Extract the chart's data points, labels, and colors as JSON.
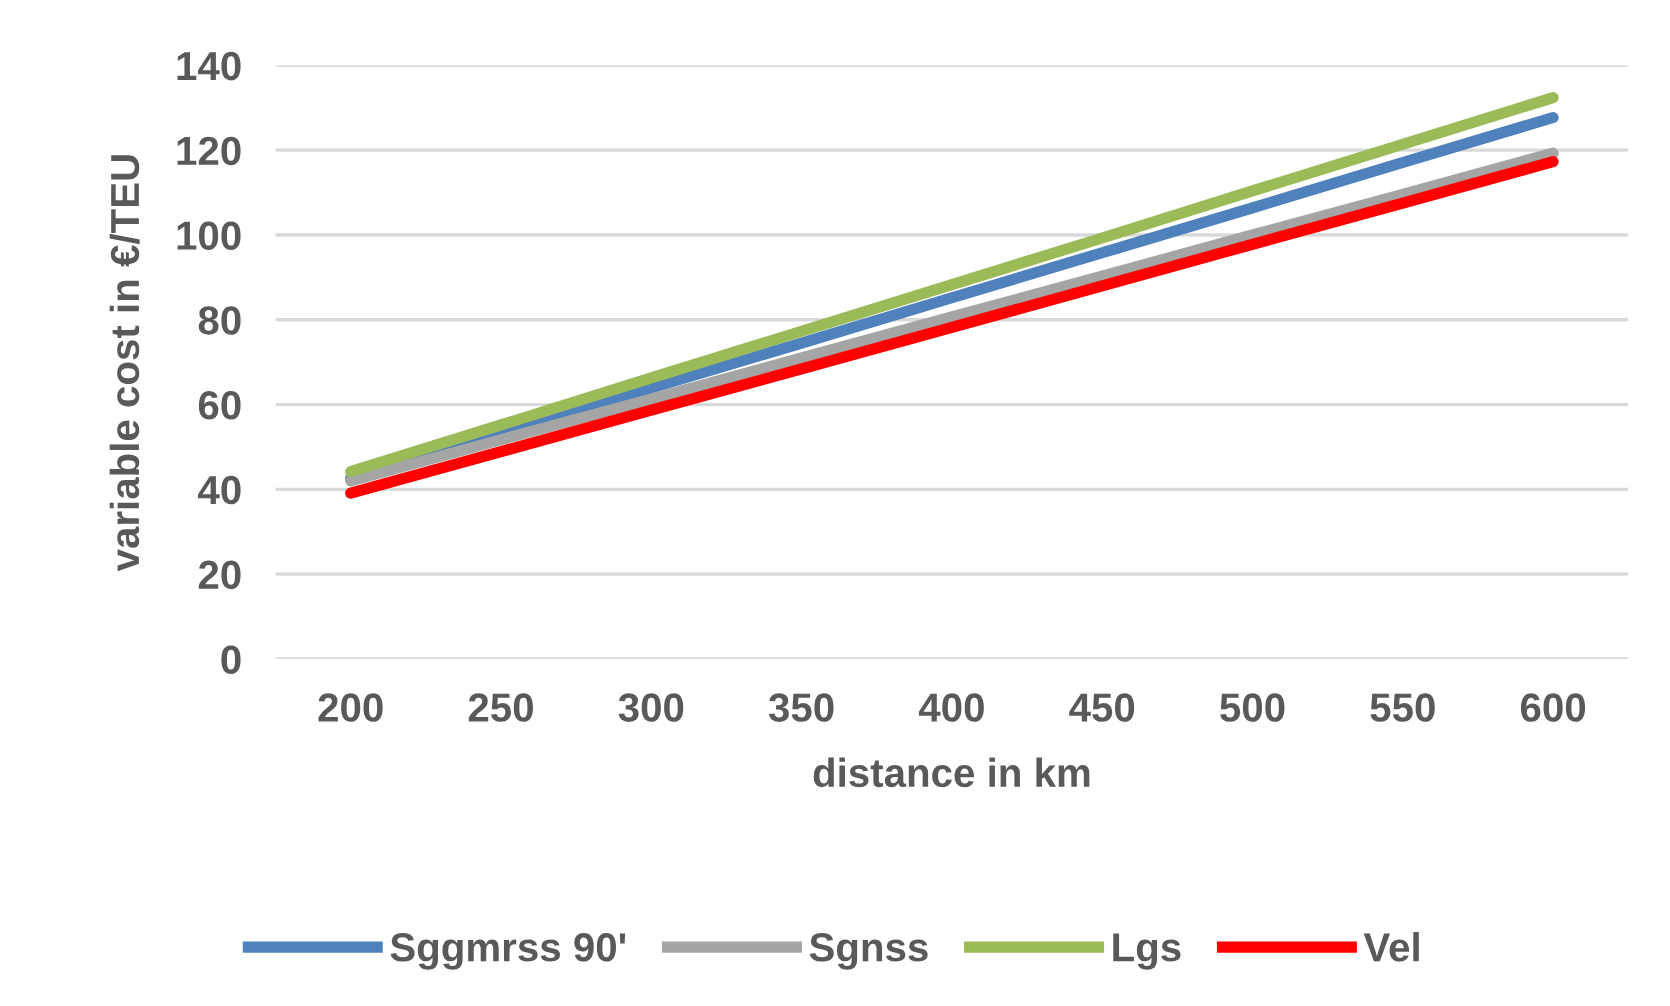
{
  "chart_data": {
    "type": "line",
    "xlabel": "distance in km",
    "ylabel": "variable cost in €/TEU",
    "categories": [
      "200",
      "250",
      "300",
      "350",
      "400",
      "450",
      "500",
      "550",
      "600"
    ],
    "series": [
      {
        "name": "Sggmrss 90'",
        "color": "#4f81bd",
        "values": [
          42.6,
          53.2,
          63.9,
          74.5,
          85.2,
          95.8,
          106.4,
          117.1,
          127.7
        ]
      },
      {
        "name": "Sgnss",
        "color": "#a5a5a5",
        "values": [
          42.0,
          51.7,
          61.3,
          71.0,
          80.7,
          90.3,
          100.0,
          109.6,
          119.3
        ]
      },
      {
        "name": "Lgs",
        "color": "#9bbb59",
        "values": [
          44.2,
          55.2,
          66.3,
          77.3,
          88.3,
          99.3,
          110.4,
          121.4,
          132.4
        ]
      },
      {
        "name": "Vel",
        "color": "#ff0000",
        "values": [
          39.1,
          48.9,
          58.7,
          68.4,
          78.2,
          88.0,
          97.8,
          107.5,
          117.3
        ]
      }
    ],
    "ylim": [
      0,
      140
    ],
    "yticks": [
      0,
      20,
      40,
      60,
      80,
      100,
      120,
      140
    ],
    "grid": "y",
    "legend": "bottom"
  }
}
